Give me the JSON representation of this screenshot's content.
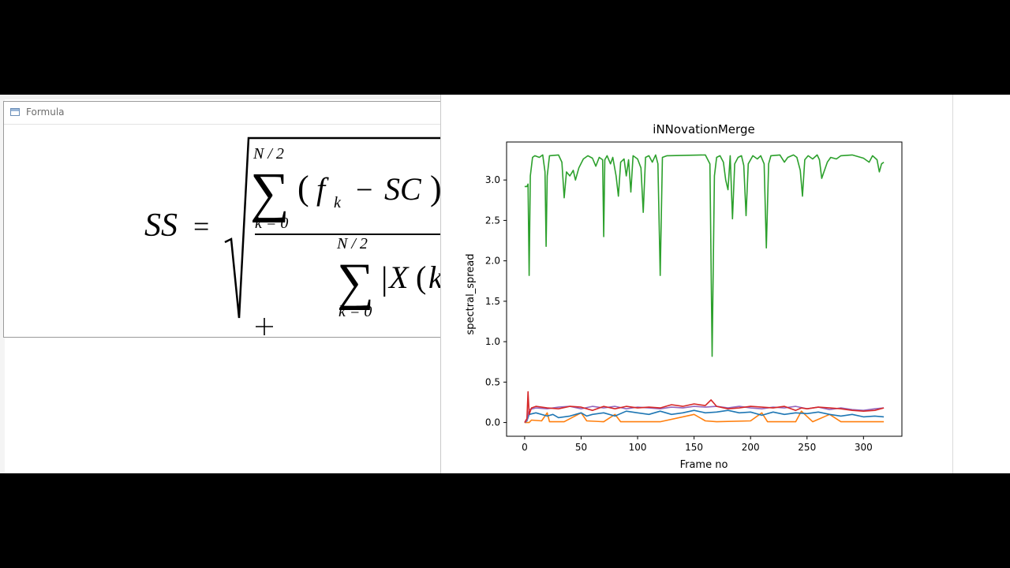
{
  "formula_window": {
    "title": "Formula",
    "icon": "window-icon",
    "lhs": "SS",
    "equals": "=",
    "num_upper": "N / 2",
    "num_lower": "k = 0",
    "num_f": "f",
    "num_sub_k": "k",
    "num_minus": "−",
    "num_sc": "SC",
    "num_paren_open": "(",
    "num_paren_close": ")",
    "den_upper": "N / 2",
    "den_lower": "k = 0",
    "den_x": "X",
    "den_k": "k",
    "den_paren": "(",
    "den_bar": "|"
  },
  "colors": {
    "blue": "#1f77b4",
    "orange": "#ff7f0e",
    "green": "#2ca02c",
    "red": "#d62728",
    "purple": "#9467bd"
  },
  "chart_data": {
    "type": "line",
    "title": "iNNovationMerge",
    "xlabel": "Frame no",
    "ylabel": "spectral_spread",
    "xlim": [
      -16,
      334
    ],
    "ylim": [
      -0.17,
      3.47
    ],
    "xticks": [
      "0",
      "50",
      "100",
      "150",
      "200",
      "250",
      "300"
    ],
    "xtick_values": [
      0,
      50,
      100,
      150,
      200,
      250,
      300
    ],
    "yticks": [
      "0.0",
      "0.5",
      "1.0",
      "1.5",
      "2.0",
      "2.5",
      "3.0"
    ],
    "ytick_values": [
      0,
      0.5,
      1.0,
      1.5,
      2.0,
      2.5,
      3.0
    ],
    "grid": false,
    "series": [
      {
        "color": "green",
        "points": [
          [
            0,
            2.92
          ],
          [
            2,
            2.92
          ],
          [
            3,
            2.95
          ],
          [
            4,
            1.82
          ],
          [
            5,
            3.05
          ],
          [
            7,
            3.28
          ],
          [
            9,
            3.3
          ],
          [
            13,
            3.28
          ],
          [
            16,
            3.31
          ],
          [
            18,
            3.1
          ],
          [
            19,
            2.18
          ],
          [
            20,
            3.05
          ],
          [
            22,
            3.3
          ],
          [
            30,
            3.31
          ],
          [
            33,
            3.22
          ],
          [
            35,
            2.78
          ],
          [
            37,
            3.1
          ],
          [
            40,
            3.05
          ],
          [
            43,
            3.12
          ],
          [
            45,
            3.0
          ],
          [
            48,
            3.15
          ],
          [
            52,
            3.26
          ],
          [
            56,
            3.3
          ],
          [
            60,
            3.27
          ],
          [
            63,
            3.17
          ],
          [
            66,
            3.28
          ],
          [
            69,
            3.25
          ],
          [
            70,
            2.3
          ],
          [
            71,
            3.25
          ],
          [
            73,
            3.3
          ],
          [
            76,
            3.2
          ],
          [
            78,
            3.28
          ],
          [
            81,
            3.05
          ],
          [
            83,
            2.8
          ],
          [
            85,
            3.22
          ],
          [
            88,
            3.26
          ],
          [
            90,
            3.05
          ],
          [
            92,
            3.25
          ],
          [
            94,
            2.85
          ],
          [
            96,
            3.3
          ],
          [
            100,
            3.26
          ],
          [
            103,
            3.15
          ],
          [
            105,
            2.6
          ],
          [
            107,
            3.28
          ],
          [
            110,
            3.3
          ],
          [
            113,
            3.22
          ],
          [
            116,
            3.31
          ],
          [
            118,
            3.2
          ],
          [
            120,
            1.82
          ],
          [
            122,
            3.28
          ],
          [
            126,
            3.3
          ],
          [
            160,
            3.31
          ],
          [
            164,
            3.2
          ],
          [
            166,
            0.82
          ],
          [
            168,
            3.05
          ],
          [
            170,
            3.28
          ],
          [
            173,
            3.3
          ],
          [
            176,
            3.22
          ],
          [
            178,
            3.0
          ],
          [
            180,
            2.88
          ],
          [
            182,
            3.3
          ],
          [
            184,
            2.52
          ],
          [
            186,
            3.2
          ],
          [
            189,
            3.28
          ],
          [
            192,
            3.3
          ],
          [
            194,
            3.18
          ],
          [
            196,
            2.56
          ],
          [
            198,
            3.2
          ],
          [
            202,
            3.3
          ],
          [
            206,
            3.26
          ],
          [
            209,
            3.3
          ],
          [
            212,
            3.2
          ],
          [
            214,
            2.16
          ],
          [
            216,
            3.2
          ],
          [
            218,
            3.3
          ],
          [
            226,
            3.31
          ],
          [
            230,
            3.22
          ],
          [
            233,
            3.28
          ],
          [
            238,
            3.31
          ],
          [
            241,
            3.28
          ],
          [
            244,
            3.12
          ],
          [
            246,
            2.8
          ],
          [
            248,
            3.25
          ],
          [
            251,
            3.3
          ],
          [
            255,
            3.26
          ],
          [
            259,
            3.31
          ],
          [
            261,
            3.25
          ],
          [
            263,
            3.02
          ],
          [
            265,
            3.1
          ],
          [
            268,
            3.22
          ],
          [
            271,
            3.28
          ],
          [
            276,
            3.26
          ],
          [
            280,
            3.3
          ],
          [
            290,
            3.31
          ],
          [
            300,
            3.27
          ],
          [
            305,
            3.22
          ],
          [
            308,
            3.3
          ],
          [
            312,
            3.25
          ],
          [
            314,
            3.1
          ],
          [
            316,
            3.2
          ],
          [
            318,
            3.22
          ]
        ]
      },
      {
        "color": "red",
        "points": [
          [
            0,
            0.0
          ],
          [
            2,
            0.05
          ],
          [
            3,
            0.38
          ],
          [
            4,
            0.1
          ],
          [
            6,
            0.18
          ],
          [
            10,
            0.2
          ],
          [
            20,
            0.18
          ],
          [
            30,
            0.17
          ],
          [
            40,
            0.2
          ],
          [
            50,
            0.19
          ],
          [
            60,
            0.15
          ],
          [
            70,
            0.2
          ],
          [
            80,
            0.17
          ],
          [
            90,
            0.2
          ],
          [
            100,
            0.18
          ],
          [
            110,
            0.19
          ],
          [
            120,
            0.18
          ],
          [
            130,
            0.22
          ],
          [
            140,
            0.2
          ],
          [
            150,
            0.23
          ],
          [
            160,
            0.21
          ],
          [
            165,
            0.28
          ],
          [
            170,
            0.2
          ],
          [
            180,
            0.17
          ],
          [
            190,
            0.18
          ],
          [
            200,
            0.2
          ],
          [
            210,
            0.19
          ],
          [
            220,
            0.18
          ],
          [
            230,
            0.2
          ],
          [
            240,
            0.15
          ],
          [
            245,
            0.18
          ],
          [
            250,
            0.17
          ],
          [
            260,
            0.19
          ],
          [
            270,
            0.18
          ],
          [
            280,
            0.17
          ],
          [
            290,
            0.15
          ],
          [
            300,
            0.14
          ],
          [
            310,
            0.15
          ],
          [
            318,
            0.18
          ]
        ]
      },
      {
        "color": "purple",
        "points": [
          [
            0,
            0.0
          ],
          [
            2,
            0.03
          ],
          [
            4,
            0.16
          ],
          [
            10,
            0.18
          ],
          [
            20,
            0.17
          ],
          [
            30,
            0.19
          ],
          [
            40,
            0.2
          ],
          [
            50,
            0.17
          ],
          [
            60,
            0.2
          ],
          [
            70,
            0.18
          ],
          [
            80,
            0.2
          ],
          [
            90,
            0.17
          ],
          [
            100,
            0.19
          ],
          [
            110,
            0.18
          ],
          [
            120,
            0.17
          ],
          [
            130,
            0.19
          ],
          [
            140,
            0.18
          ],
          [
            150,
            0.2
          ],
          [
            160,
            0.19
          ],
          [
            170,
            0.2
          ],
          [
            180,
            0.18
          ],
          [
            190,
            0.2
          ],
          [
            200,
            0.18
          ],
          [
            210,
            0.17
          ],
          [
            220,
            0.19
          ],
          [
            230,
            0.18
          ],
          [
            240,
            0.2
          ],
          [
            250,
            0.17
          ],
          [
            260,
            0.19
          ],
          [
            270,
            0.16
          ],
          [
            280,
            0.18
          ],
          [
            290,
            0.16
          ],
          [
            300,
            0.15
          ],
          [
            310,
            0.17
          ],
          [
            318,
            0.18
          ]
        ]
      },
      {
        "color": "blue",
        "points": [
          [
            0,
            0.0
          ],
          [
            2,
            0.02
          ],
          [
            4,
            0.1
          ],
          [
            10,
            0.12
          ],
          [
            20,
            0.08
          ],
          [
            25,
            0.1
          ],
          [
            30,
            0.06
          ],
          [
            40,
            0.08
          ],
          [
            50,
            0.12
          ],
          [
            55,
            0.08
          ],
          [
            60,
            0.1
          ],
          [
            70,
            0.12
          ],
          [
            80,
            0.08
          ],
          [
            90,
            0.14
          ],
          [
            100,
            0.12
          ],
          [
            110,
            0.1
          ],
          [
            120,
            0.14
          ],
          [
            130,
            0.1
          ],
          [
            140,
            0.12
          ],
          [
            150,
            0.15
          ],
          [
            160,
            0.12
          ],
          [
            170,
            0.13
          ],
          [
            180,
            0.15
          ],
          [
            190,
            0.12
          ],
          [
            200,
            0.13
          ],
          [
            210,
            0.09
          ],
          [
            220,
            0.13
          ],
          [
            230,
            0.1
          ],
          [
            240,
            0.12
          ],
          [
            250,
            0.11
          ],
          [
            260,
            0.13
          ],
          [
            270,
            0.1
          ],
          [
            280,
            0.08
          ],
          [
            290,
            0.1
          ],
          [
            300,
            0.07
          ],
          [
            310,
            0.08
          ],
          [
            318,
            0.07
          ]
        ]
      },
      {
        "color": "orange",
        "points": [
          [
            0,
            0.0
          ],
          [
            4,
            0.0
          ],
          [
            6,
            0.03
          ],
          [
            15,
            0.02
          ],
          [
            20,
            0.12
          ],
          [
            22,
            0.01
          ],
          [
            35,
            0.01
          ],
          [
            50,
            0.12
          ],
          [
            55,
            0.02
          ],
          [
            70,
            0.01
          ],
          [
            80,
            0.1
          ],
          [
            85,
            0.01
          ],
          [
            120,
            0.01
          ],
          [
            150,
            0.1
          ],
          [
            160,
            0.02
          ],
          [
            170,
            0.01
          ],
          [
            200,
            0.02
          ],
          [
            210,
            0.12
          ],
          [
            215,
            0.01
          ],
          [
            240,
            0.01
          ],
          [
            245,
            0.14
          ],
          [
            255,
            0.01
          ],
          [
            270,
            0.1
          ],
          [
            280,
            0.01
          ],
          [
            318,
            0.01
          ]
        ]
      }
    ]
  }
}
